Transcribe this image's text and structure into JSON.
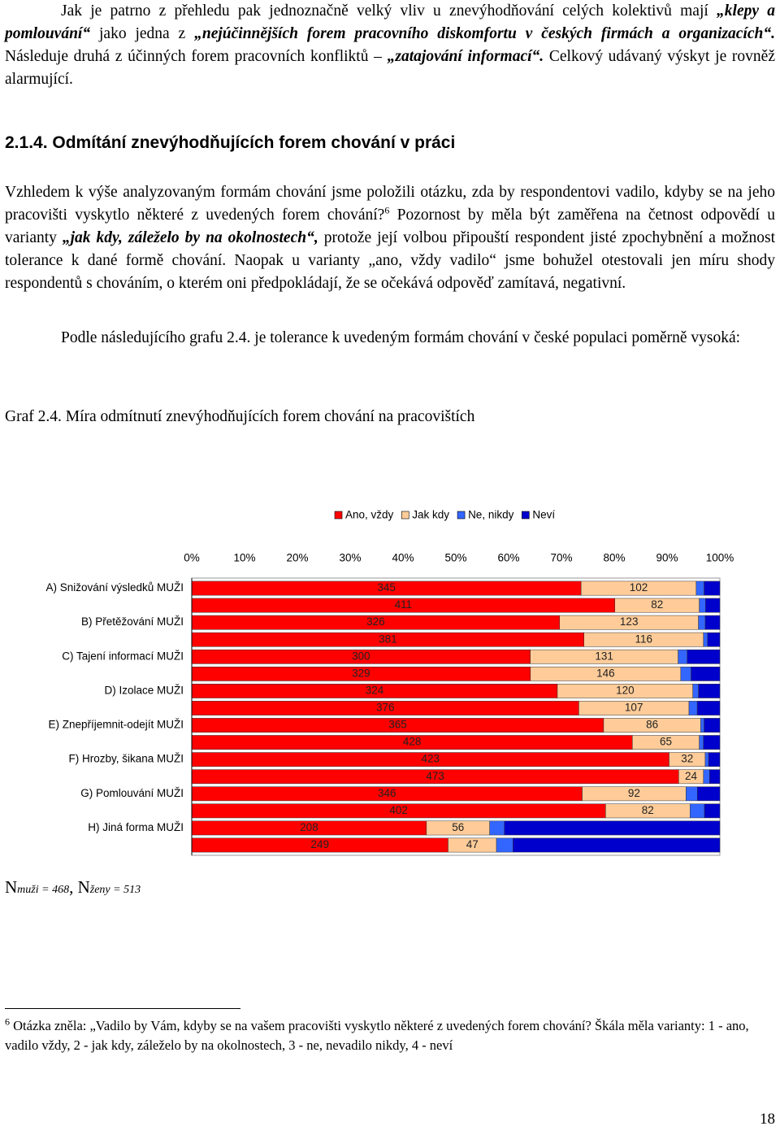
{
  "document": {
    "paragraph_1": [
      {
        "text": "Jak je patrno z přehledu pak jednoznačně velký vliv u znevýhodňování celých kolektivů mají "
      },
      {
        "em": "„klepy a pomlouvání“"
      },
      {
        "text": " jako jedna z "
      },
      {
        "em": "„nejúčinnějších forem pracovního diskomfortu v českých firmách a organizacích“."
      },
      {
        "text": " Následuje druhá z účinných forem pracovních konfliktů – "
      },
      {
        "em": "„zatajování informací“."
      },
      {
        "text": " Celkový udávaný výskyt je rovněž alarmující."
      }
    ],
    "heading": "2.1.4. Odmítání znevýhodňujících forem chování v práci",
    "paragraph_2": [
      {
        "text": "Vzhledem k výše analyzovaným formám chování jsme položili otázku, zda by respondentovi vadilo, kdyby se na jeho pracovišti vyskytlo některé z uvedených forem chování?"
      },
      {
        "sup": "6"
      },
      {
        "text": " Pozornost by měla být zaměřena na četnost odpovědí u varianty "
      },
      {
        "em": "„jak kdy, záleželo by na okolnostech“,"
      },
      {
        "text": " protože její volbou připouští respondent jisté zpochybnění a možnost tolerance k dané formě chování. Naopak u varianty „ano, vždy vadilo“ jsme bohužel otestovali jen míru shody respondentů s chováním, o kterém oni předpokládají, že se očekává odpověď zamítavá, negativní."
      }
    ],
    "paragraph_3": [
      {
        "text": "Podle následujícího grafu 2.4. je tolerance k uvedeným formám chování v české populaci poměrně vysoká:"
      }
    ],
    "caption": "Graf 2.4. Míra odmítnutí znevýhodňujících forem chování na pracovištích",
    "sample_note": [
      {
        "text": "N"
      },
      {
        "small": "muži = 468"
      },
      {
        "text": ", N"
      },
      {
        "small": "ženy = 513"
      }
    ],
    "footnote": [
      {
        "sup": "6"
      },
      {
        "text": " Otázka zněla: „Vadilo by Vám, kdyby se na vašem pracovišti vyskytlo některé z uvedených forem chování? Škála měla varianty: 1 - ano, vadilo vždy, 2 - jak kdy, záleželo by na okolnostech, 3 - ne, nevadilo nikdy, 4 - neví"
      }
    ],
    "page_number": "18"
  },
  "chart_data": {
    "type": "bar",
    "orientation": "horizontal",
    "stacking": "percent",
    "legend": "top",
    "categories": [
      "A) Snižování výsledků MUŽI",
      null,
      "B) Přetěžování MUŽI",
      null,
      "C) Tajení informací MUŽI",
      null,
      "D) Izolace MUŽI",
      null,
      "E) Znepříjemnit-odejít MUŽI",
      null,
      "F) Hrozby, šikana MUŽI",
      null,
      "G) Pomlouvání  MUŽI",
      null,
      "H) Jiná forma   MUŽI",
      null
    ],
    "series": [
      {
        "name": "Ano, vždy",
        "color": "#ff0000",
        "data_labels": true,
        "values": [
          345,
          411,
          326,
          381,
          300,
          329,
          324,
          376,
          365,
          428,
          423,
          473,
          346,
          402,
          208,
          249
        ]
      },
      {
        "name": "Jak kdy",
        "color": "#ffcc99",
        "data_labels": true,
        "values": [
          102,
          82,
          123,
          116,
          131,
          146,
          120,
          107,
          86,
          65,
          32,
          24,
          92,
          82,
          56,
          47
        ]
      },
      {
        "name": "Ne, nikdy",
        "color": "#3366ff",
        "data_labels": false,
        "values": [
          7,
          6,
          6,
          4,
          8,
          10,
          5,
          8,
          3,
          4,
          3,
          6,
          10,
          14,
          13,
          16
        ]
      },
      {
        "name": "Neví",
        "color": "#0000cc",
        "data_labels": false,
        "values": [
          14,
          14,
          13,
          12,
          29,
          28,
          19,
          22,
          14,
          16,
          10,
          10,
          20,
          15,
          191,
          201
        ]
      }
    ],
    "xlim": [
      0,
      100
    ],
    "xticks": [
      {
        "value": 0,
        "label": "0%"
      },
      {
        "value": 10,
        "label": "10%"
      },
      {
        "value": 20,
        "label": "20%"
      },
      {
        "value": 30,
        "label": "30%"
      },
      {
        "value": 40,
        "label": "40%"
      },
      {
        "value": 50,
        "label": "50%"
      },
      {
        "value": 60,
        "label": "60%"
      },
      {
        "value": 70,
        "label": "70%"
      },
      {
        "value": 80,
        "label": "80%"
      },
      {
        "value": 90,
        "label": "90%"
      },
      {
        "value": 100,
        "label": "100%"
      }
    ]
  }
}
